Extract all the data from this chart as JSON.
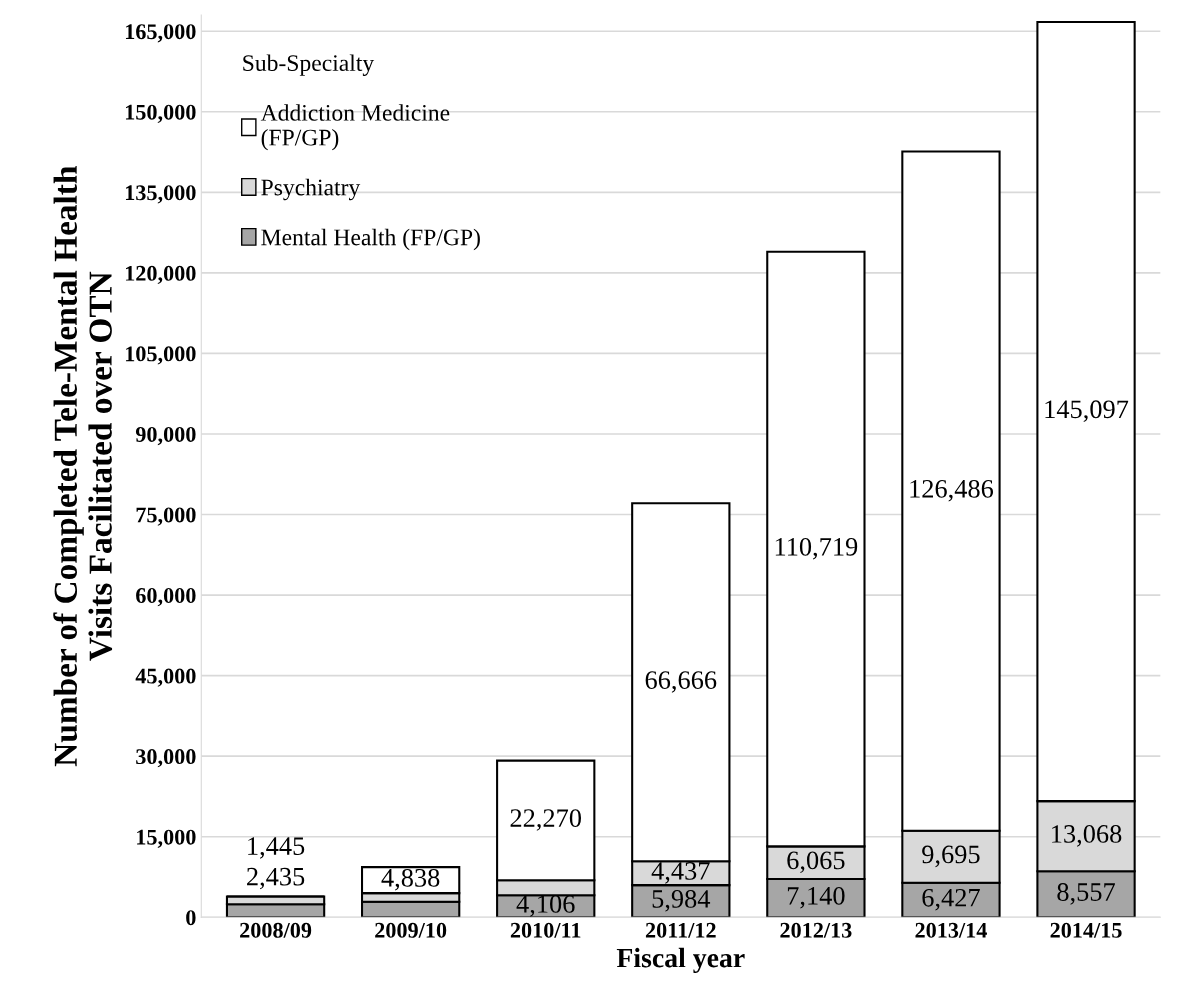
{
  "chart_data": {
    "type": "bar",
    "stacked": true,
    "xlabel": "Fiscal year",
    "ylabel": "Number of Completed Tele-Mental Health\nVisits Facilitated over OTN",
    "legend_title": "Sub-Specialty",
    "legend": "top left",
    "grid": "y",
    "categories": [
      "2008/09",
      "2009/10",
      "2010/11",
      "2011/12",
      "2012/13",
      "2013/14",
      "2014/15"
    ],
    "ylim": [
      0,
      168000
    ],
    "yticks": [
      {
        "value": 0,
        "label": "0"
      },
      {
        "value": 15000,
        "label": "15,000"
      },
      {
        "value": 30000,
        "label": "30,000"
      },
      {
        "value": 45000,
        "label": "45,000"
      },
      {
        "value": 60000,
        "label": "60,000"
      },
      {
        "value": 75000,
        "label": "75,000"
      },
      {
        "value": 90000,
        "label": "90,000"
      },
      {
        "value": 105000,
        "label": "105,000"
      },
      {
        "value": 120000,
        "label": "120,000"
      },
      {
        "value": 135000,
        "label": "135,000"
      },
      {
        "value": 150000,
        "label": "150,000"
      },
      {
        "value": 165000,
        "label": "165,000"
      }
    ],
    "series": [
      {
        "name": "Mental Health (FP/GP)",
        "color": "#a6a6a6",
        "values": [
          2435,
          2900,
          4106,
          5984,
          7140,
          6427,
          8557
        ],
        "value_labels": [
          "2,435",
          null,
          "4,106",
          "5,984",
          "7,140",
          "6,427",
          "8,557"
        ]
      },
      {
        "name": "Psychiatry",
        "color": "#d9d9d9",
        "values": [
          1445,
          1600,
          2800,
          4437,
          6065,
          9695,
          13068
        ],
        "value_labels": [
          "1,445",
          null,
          null,
          "4,437",
          "6,065",
          "9,695",
          "13,068"
        ]
      },
      {
        "name": "Addiction Medicine\n(FP/GP)",
        "color": "#ffffff",
        "values": [
          null,
          4838,
          22270,
          66666,
          110719,
          126486,
          145097
        ],
        "value_labels": [
          null,
          "4,838",
          "22,270",
          "66,666",
          "110,719",
          "126,486",
          "145,097"
        ]
      }
    ]
  }
}
